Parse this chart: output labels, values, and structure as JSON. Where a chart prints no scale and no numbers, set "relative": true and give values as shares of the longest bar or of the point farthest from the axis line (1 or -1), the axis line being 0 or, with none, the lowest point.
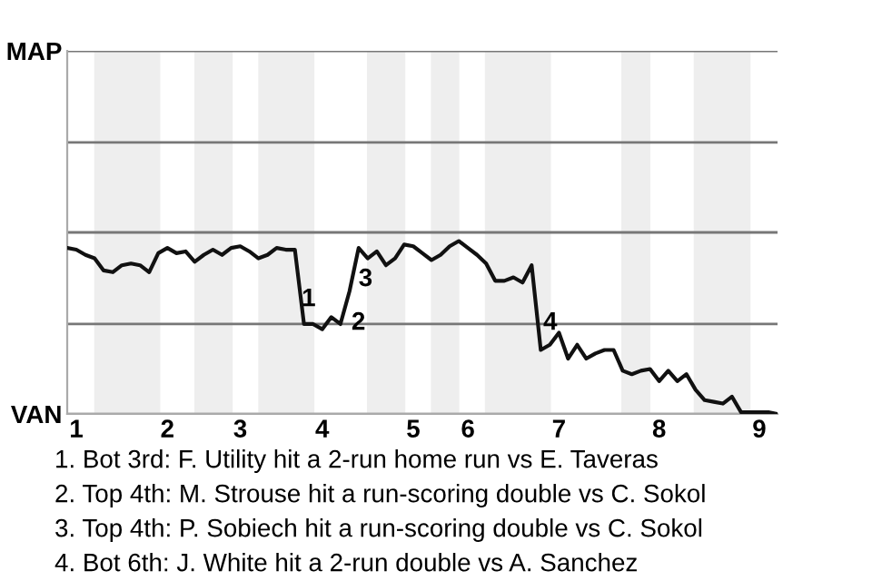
{
  "chart_data": {
    "type": "line",
    "relative": true,
    "categories": [
      null,
      "1",
      null,
      null,
      null,
      null,
      null,
      null,
      null,
      null,
      null,
      "2",
      null,
      null,
      null,
      null,
      null,
      null,
      null,
      "3",
      null,
      null,
      null,
      null,
      null,
      null,
      null,
      null,
      "4",
      null,
      null,
      null,
      null,
      null,
      null,
      null,
      null,
      null,
      "5",
      null,
      null,
      null,
      null,
      null,
      "6",
      null,
      null,
      null,
      null,
      null,
      null,
      null,
      null,
      null,
      "7",
      null,
      null,
      null,
      null,
      null,
      null,
      null,
      null,
      null,
      null,
      "8",
      null,
      null,
      null,
      null,
      null,
      null,
      null,
      null,
      null,
      null,
      "9",
      null,
      null
    ],
    "series": [
      {
        "color": "#111111",
        "values": [
          0.96,
          0.95,
          0.92,
          0.9,
          0.83,
          0.82,
          0.86,
          0.87,
          0.86,
          0.82,
          0.93,
          0.96,
          0.93,
          0.94,
          0.88,
          0.92,
          0.95,
          0.92,
          0.96,
          0.97,
          0.94,
          0.9,
          0.92,
          0.96,
          0.95,
          0.95,
          0.52,
          0.52,
          0.49,
          0.56,
          0.52,
          0.71,
          0.96,
          0.9,
          0.94,
          0.86,
          0.9,
          0.98,
          0.97,
          0.93,
          0.89,
          0.92,
          0.97,
          1,
          0.96,
          0.92,
          0.87,
          0.77,
          0.77,
          0.79,
          0.76,
          0.86,
          0.37,
          0.4,
          0.47,
          0.32,
          0.4,
          0.32,
          0.35,
          0.37,
          0.37,
          0.25,
          0.23,
          0.25,
          0.26,
          0.19,
          0.25,
          0.19,
          0.23,
          0.14,
          0.08,
          0.07,
          0.06,
          0.1,
          0.01,
          0.01,
          0.01,
          0.01,
          0
        ]
      }
    ],
    "ref_lines": [
      {
        "axis": "y",
        "value": 0,
        "label": "VAN",
        "color": "#aaaaaa"
      },
      {
        "axis": "y",
        "value": 0.52,
        "color": "#777777"
      },
      {
        "axis": "y",
        "value": 1.05,
        "color": "#777777"
      },
      {
        "axis": "y",
        "value": 1.57,
        "color": "#777777"
      },
      {
        "axis": "y",
        "value": 2.1,
        "label": "MAP",
        "color": "#777777"
      }
    ],
    "annotations": [
      "1",
      "2",
      "3",
      "4",
      "1. Bot 3rd: F. Utility hit a 2-run home run vs E. Taveras",
      "2. Top 4th: M. Strouse hit a run-scoring double vs C. Sokol",
      "3. Top 4th: P. Sobiech hit a run-scoring double vs C. Sokol",
      "4. Bot 6th: J. White hit a 2-run double vs A. Sanchez"
    ]
  }
}
